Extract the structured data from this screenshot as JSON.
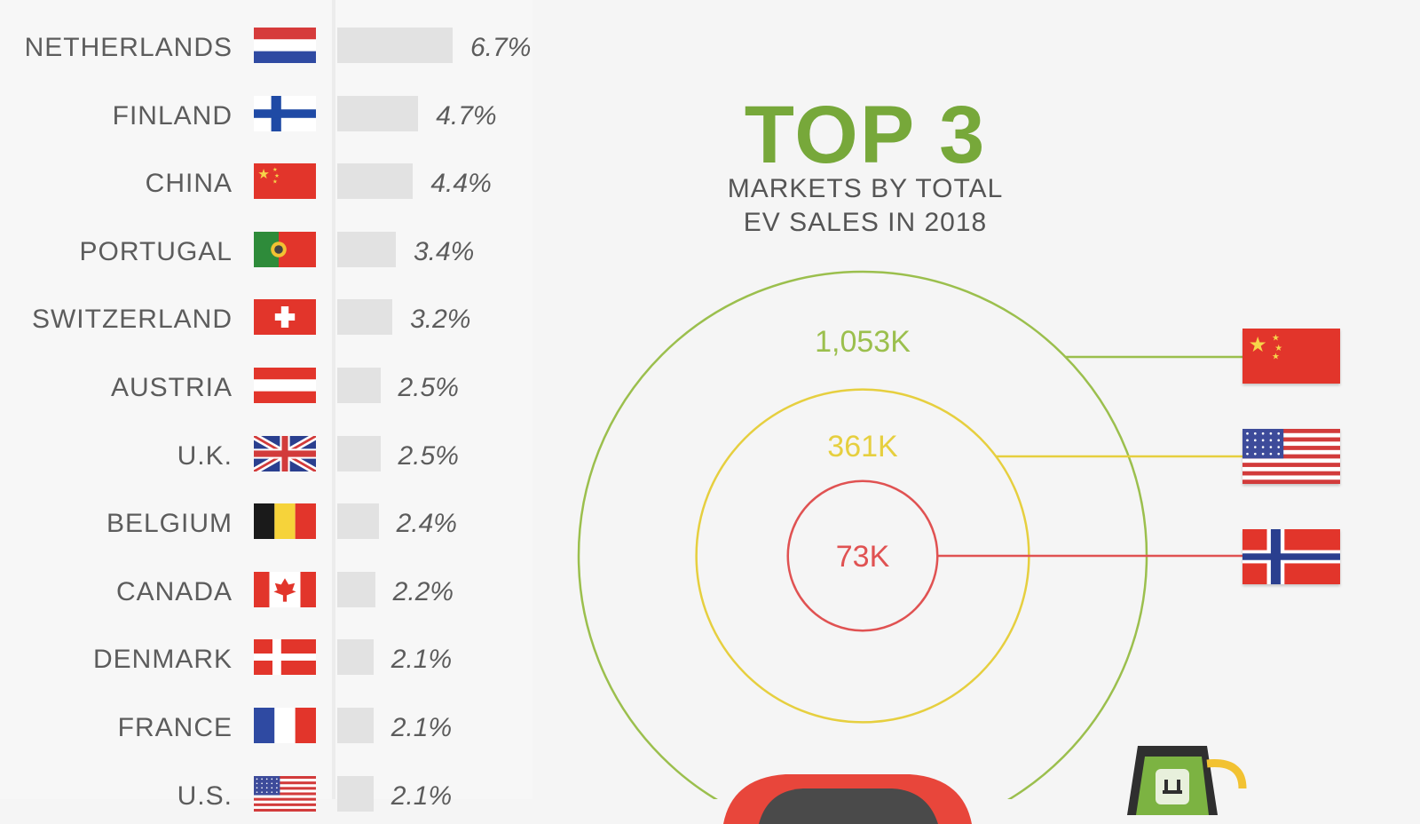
{
  "rankings": [
    {
      "country": "NETHERLANDS",
      "pct": "6.7%",
      "value": 6.7,
      "flag": "netherlands"
    },
    {
      "country": "FINLAND",
      "pct": "4.7%",
      "value": 4.7,
      "flag": "finland"
    },
    {
      "country": "CHINA",
      "pct": "4.4%",
      "value": 4.4,
      "flag": "china"
    },
    {
      "country": "PORTUGAL",
      "pct": "3.4%",
      "value": 3.4,
      "flag": "portugal"
    },
    {
      "country": "SWITZERLAND",
      "pct": "3.2%",
      "value": 3.2,
      "flag": "switzerland"
    },
    {
      "country": "AUSTRIA",
      "pct": "2.5%",
      "value": 2.5,
      "flag": "austria"
    },
    {
      "country": "U.K.",
      "pct": "2.5%",
      "value": 2.5,
      "flag": "uk"
    },
    {
      "country": "BELGIUM",
      "pct": "2.4%",
      "value": 2.4,
      "flag": "belgium"
    },
    {
      "country": "CANADA",
      "pct": "2.2%",
      "value": 2.2,
      "flag": "canada"
    },
    {
      "country": "DENMARK",
      "pct": "2.1%",
      "value": 2.1,
      "flag": "denmark"
    },
    {
      "country": "FRANCE",
      "pct": "2.1%",
      "value": 2.1,
      "flag": "france"
    },
    {
      "country": "U.S.",
      "pct": "2.1%",
      "value": 2.1,
      "flag": "usa"
    }
  ],
  "top3": {
    "title": "TOP 3",
    "subtitle_line1": "MARKETS BY TOTAL",
    "subtitle_line2": "EV SALES IN 2018",
    "markets": [
      {
        "label": "1,053K",
        "value": 1053,
        "flag": "china",
        "color": "#9bbf4d"
      },
      {
        "label": "361K",
        "value": 361,
        "flag": "usa",
        "color": "#e6cf3f"
      },
      {
        "label": "73K",
        "value": 73,
        "flag": "norway",
        "color": "#e05252"
      }
    ]
  },
  "chart_data": [
    {
      "type": "bar",
      "orientation": "horizontal",
      "categories": [
        "NETHERLANDS",
        "FINLAND",
        "CHINA",
        "PORTUGAL",
        "SWITZERLAND",
        "AUSTRIA",
        "U.K.",
        "BELGIUM",
        "CANADA",
        "DENMARK",
        "FRANCE",
        "U.S."
      ],
      "values": [
        6.7,
        4.7,
        4.4,
        3.4,
        3.2,
        2.5,
        2.5,
        2.4,
        2.2,
        2.1,
        2.1,
        2.1
      ]
    },
    {
      "type": "bubble",
      "title": "TOP 3",
      "subtitle": "MARKETS BY TOTAL EV SALES IN 2018",
      "categories": [
        "China",
        "U.S.",
        "Norway"
      ],
      "values": [
        1053,
        361,
        73
      ],
      "labels": [
        "1,053K",
        "361K",
        "73K"
      ]
    }
  ],
  "colors": {
    "accent_green": "#77a83a",
    "bar": "#e2e2e2",
    "ring_china": "#9bbf4d",
    "ring_us": "#e6cf3f",
    "ring_norway": "#e05252"
  }
}
